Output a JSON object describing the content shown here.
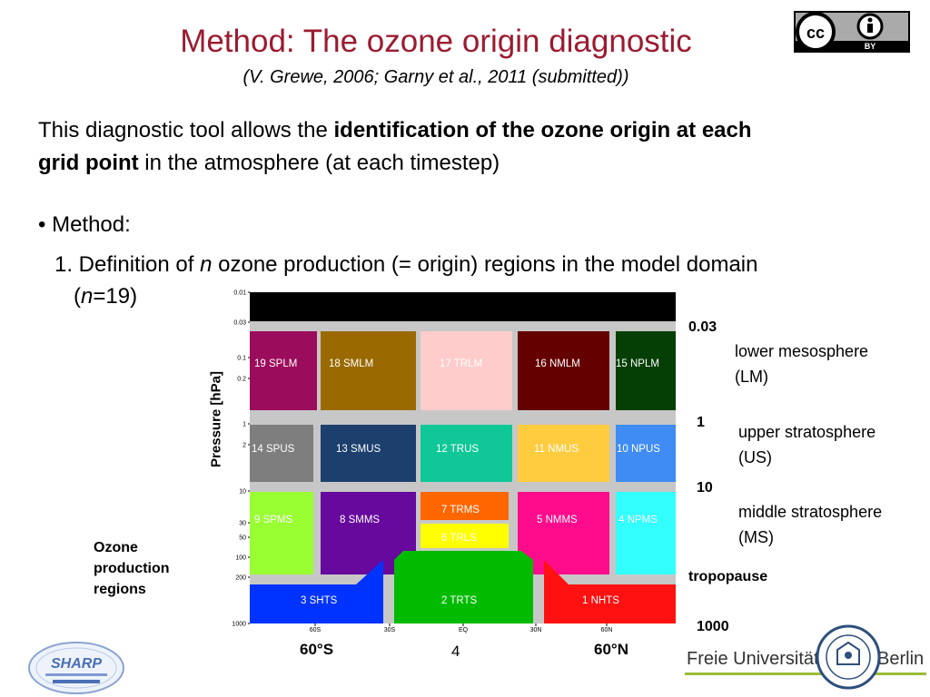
{
  "header": {
    "title": "Method: The ozone origin diagnostic",
    "subtitle": "(V. Grewe, 2006; Garny et al., 2011 (submitted))",
    "license_text": "BY"
  },
  "body": {
    "intro_prefix": "This diagnostic tool allows the ",
    "intro_bold_1": "identification of the ozone origin at each",
    "intro_bold_2": "grid point",
    "intro_suffix": " in the atmosphere (at each timestep)",
    "bullet": "• Method:",
    "step_prefix": "1. Definition of ",
    "step_n": "n",
    "step_suffix": " ozone production (= origin) regions in the model domain",
    "step_open": "(",
    "step_n2": "n",
    "step_eq": "=19)"
  },
  "diagram": {
    "y_axis_label": "Pressure [hPa]",
    "pressure_ticks": [
      "0.01",
      "0.03",
      "0.1",
      "0.2",
      "1",
      "2",
      "10",
      "30",
      "50",
      "100",
      "200",
      "1000"
    ],
    "lat_ticks": [
      "60S",
      "30S",
      "EQ",
      "30N",
      "60N"
    ],
    "regions": [
      {
        "label": "19  SPLM",
        "color": "#9c0c5c"
      },
      {
        "label": "18  SMLM",
        "color": "#9a6a00"
      },
      {
        "label": "17  TRLM",
        "color": "#ffcccc"
      },
      {
        "label": "16  NMLM",
        "color": "#640000"
      },
      {
        "label": "15  NPLM",
        "color": "#063f06"
      },
      {
        "label": "14  SPUS",
        "color": "#7e7e7e"
      },
      {
        "label": "13  SMUS",
        "color": "#1c3f6e"
      },
      {
        "label": "12  TRUS",
        "color": "#0fc797"
      },
      {
        "label": "11  NMUS",
        "color": "#ffcc40"
      },
      {
        "label": "10  NPUS",
        "color": "#3f8cf4"
      },
      {
        "label": "9  SPMS",
        "color": "#99ff33"
      },
      {
        "label": "8  SMMS",
        "color": "#66099c"
      },
      {
        "label": "7  TRMS",
        "color": "#ff6600"
      },
      {
        "label": "6  TRLS",
        "color": "#ffff00"
      },
      {
        "label": "5  NMMS",
        "color": "#ff0c8c"
      },
      {
        "label": "4  NPMS",
        "color": "#33ffff"
      },
      {
        "label": "3  SHTS",
        "color": "#0033ff"
      },
      {
        "label": "2  TRTS",
        "color": "#00bb00"
      },
      {
        "label": "1  NHTS",
        "color": "#ff1111"
      }
    ]
  },
  "legend": {
    "p003": "0.03",
    "lower_meso_1": "lower mesosphere",
    "lower_meso_2": "(LM)",
    "p1": "1",
    "upper_strat_1": "upper stratosphere",
    "upper_strat_2": "(US)",
    "p10": "10",
    "middle_strat_1": "middle stratosphere",
    "middle_strat_2": "(MS)",
    "tropopause": "tropopause",
    "p1000": "1000",
    "ozone_1": "Ozone",
    "ozone_2": "production",
    "ozone_3": "regions"
  },
  "footer": {
    "lat_s": "60°S",
    "lat_n": "60°N",
    "page_number": "4",
    "sharp_logo_text": "SHARP",
    "fu_name": "Freie Universität",
    "fu_city": "Berlin"
  }
}
